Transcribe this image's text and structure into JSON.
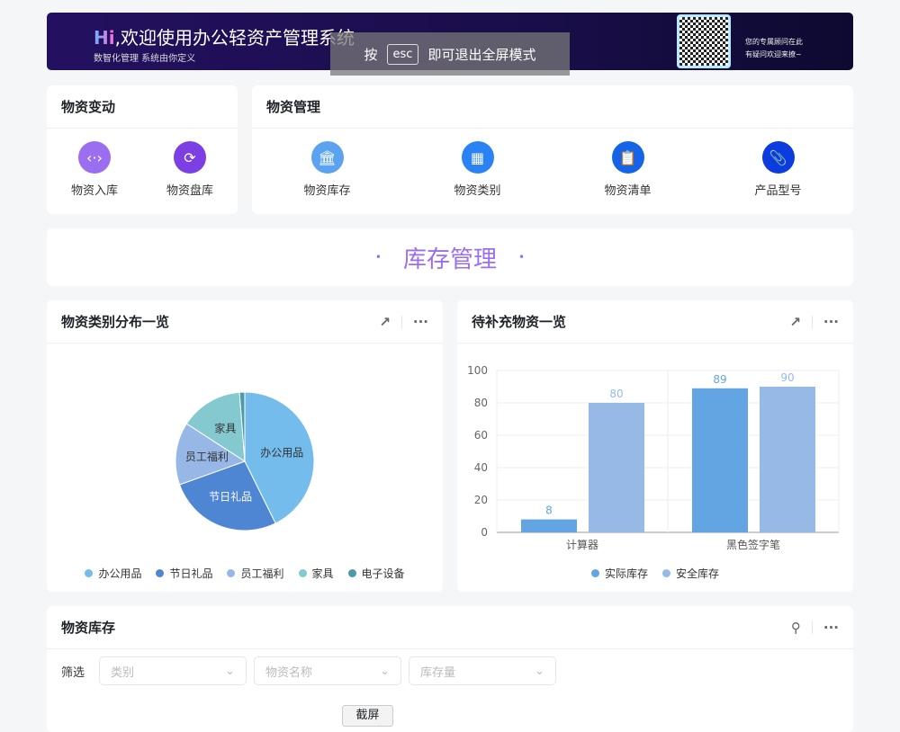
{
  "banner": {
    "hi": "Hi",
    "title": ",欢迎使用办公轻资产管理系统",
    "subtitle": "数智化管理 系统由你定义",
    "qr_text1": "您的专属顾问在此",
    "qr_text2": "有疑问欢迎来撩~"
  },
  "esc_overlay": {
    "pre": "按",
    "key": "esc",
    "post": "即可退出全屏模式"
  },
  "change_card": {
    "title": "物资变动",
    "items": [
      {
        "label": "物资入库",
        "icon": "code-arrows-icon",
        "color": "#9b6ef0"
      },
      {
        "label": "物资盘库",
        "icon": "sync-icon",
        "color": "#7b3fe4"
      }
    ]
  },
  "manage_card": {
    "title": "物资管理",
    "items": [
      {
        "label": "物资库存",
        "icon": "bank-icon",
        "color": "#5ba3f0"
      },
      {
        "label": "物资类别",
        "icon": "grid-icon",
        "color": "#2a82f5"
      },
      {
        "label": "物资清单",
        "icon": "clipboard-icon",
        "color": "#1564e8"
      },
      {
        "label": "产品型号",
        "icon": "paperclip-icon",
        "color": "#0c3ce0"
      }
    ]
  },
  "section": {
    "title": "库存管理",
    "dot": "•"
  },
  "pie_card": {
    "title": "物资类别分布一览"
  },
  "bar_card": {
    "title": "待补充物资一览"
  },
  "stock_card": {
    "title": "物资库存",
    "filter_label": "筛选",
    "filters": [
      {
        "placeholder": "类别"
      },
      {
        "placeholder": "物资名称"
      },
      {
        "placeholder": "库存量"
      }
    ]
  },
  "screenshot_btn": "截屏",
  "icons": {
    "expand": "↗",
    "more": "···",
    "search": "⚲",
    "chevron": "⌄"
  },
  "chart_data": [
    {
      "type": "pie",
      "categories": [
        "办公用品",
        "节日礼品",
        "员工福利",
        "家具",
        "电子设备"
      ],
      "values": [
        35,
        22,
        12,
        12,
        1
      ],
      "colors": [
        "#74bcec",
        "#4f86d4",
        "#97b8e6",
        "#84c9d0",
        "#4a9aa8"
      ],
      "legend": "bottom"
    },
    {
      "type": "bar",
      "categories": [
        "计算器",
        "黑色签字笔"
      ],
      "series": [
        {
          "name": "实际库存",
          "values": [
            8,
            89
          ],
          "color": "#62a5e2"
        },
        {
          "name": "安全库存",
          "values": [
            80,
            90
          ],
          "color": "#97b9e5"
        }
      ],
      "ylim": [
        0,
        100
      ],
      "yticks": [
        0,
        20,
        40,
        60,
        80,
        100
      ],
      "grid": true,
      "legend": "bottom"
    }
  ]
}
